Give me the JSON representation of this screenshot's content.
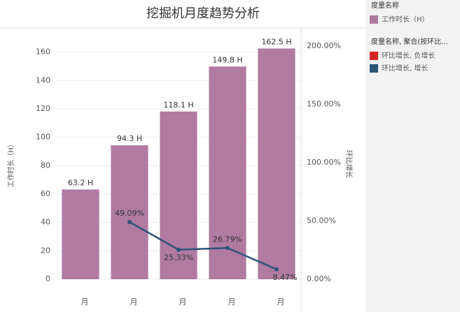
{
  "chart_data": {
    "type": "bar-line",
    "title": "挖掘机月度趋势分析",
    "categories": [
      "月",
      "月",
      "月",
      "月",
      "月"
    ],
    "y_label": "工作时长（H）",
    "y2_label": "环比增长",
    "ylim": [
      0,
      177
    ],
    "yticks": [
      0,
      20,
      40,
      60,
      80,
      100,
      120,
      140,
      160
    ],
    "y2lim": [
      0,
      215.6
    ],
    "y2ticks": [
      {
        "value": 0,
        "label": "0.00%"
      },
      {
        "value": 50,
        "label": "50.00%"
      },
      {
        "value": 100,
        "label": "100.00%"
      },
      {
        "value": 150,
        "label": "150.00%"
      },
      {
        "value": 200,
        "label": "200.00%"
      }
    ],
    "grid": true,
    "series": [
      {
        "name": "工作时长（H）",
        "color": "#b07aa1",
        "values": [
          63.2,
          94.3,
          118.1,
          149.8,
          162.5
        ],
        "value_labels": [
          "63.2 H",
          "94.3 H",
          "118.1 H",
          "149.8 H",
          "162.5 H"
        ]
      },
      {
        "name": "环比增长, 增长",
        "color": "#2e5479",
        "axis": "y2",
        "values": [
          null,
          49.09,
          25.33,
          26.79,
          8.47
        ],
        "value_labels": [
          null,
          "49.09%",
          "25.33%",
          "26.79%",
          "8.47%"
        ]
      }
    ],
    "legend": [
      {
        "title": "度量名称",
        "items": [
          {
            "label": "工作时长（H）",
            "color": "#b07aa1"
          }
        ]
      },
      {
        "title": "度量名称, 聚合(按环比...",
        "items": [
          {
            "label": "环比增长, 负增长",
            "color": "#d62728"
          },
          {
            "label": "环比增长, 增长",
            "color": "#2e5479"
          }
        ]
      }
    ]
  }
}
